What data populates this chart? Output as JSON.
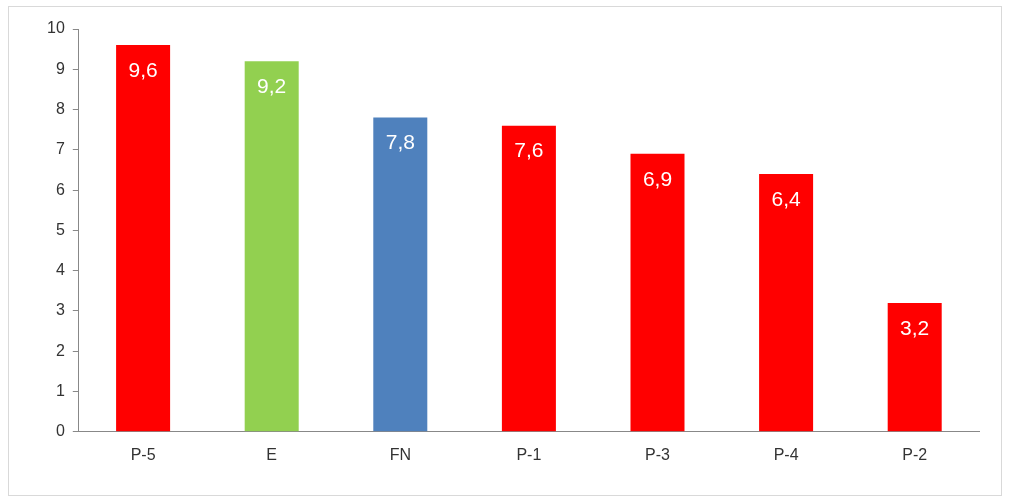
{
  "chart_data": {
    "type": "bar",
    "categories": [
      "P-5",
      "E",
      "FN",
      "P-1",
      "P-3",
      "P-4",
      "P-2"
    ],
    "values": [
      9.6,
      9.2,
      7.8,
      7.6,
      6.9,
      6.4,
      3.2
    ],
    "colors": [
      "#ff0000",
      "#92d050",
      "#4f81bd",
      "#ff0000",
      "#ff0000",
      "#ff0000",
      "#ff0000"
    ],
    "value_labels": [
      "9,6",
      "9,2",
      "7,8",
      "7,6",
      "6,9",
      "6,4",
      "3,2"
    ],
    "ylim": [
      0,
      10
    ],
    "yticks": [
      0,
      1,
      2,
      3,
      4,
      5,
      6,
      7,
      8,
      9,
      10
    ],
    "grid": false,
    "legend": false
  }
}
